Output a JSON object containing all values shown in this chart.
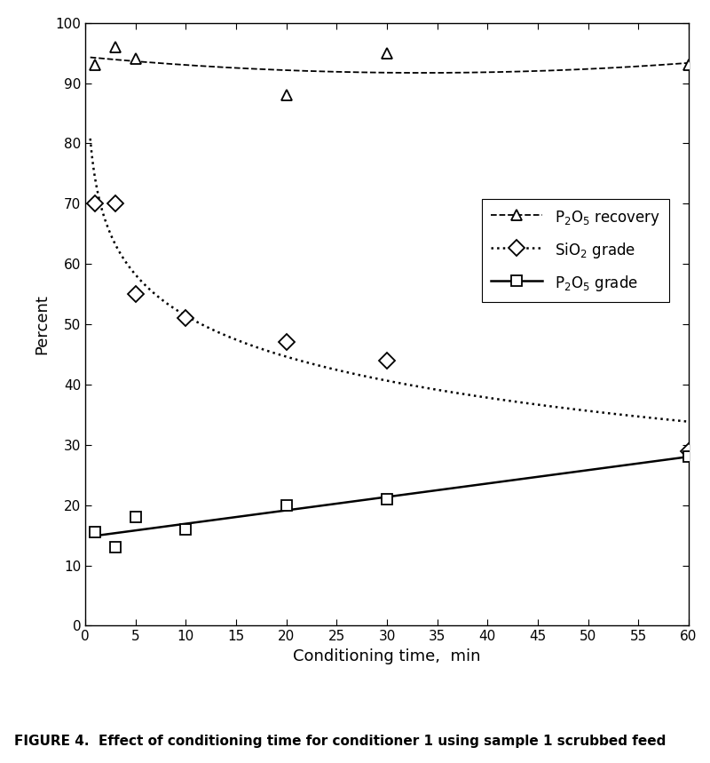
{
  "title": "",
  "xlabel": "Conditioning time,  min",
  "ylabel": "Percent",
  "caption": "FIGURE 4.  Effect of conditioning time for conditioner 1 using sample 1 scrubbed feed",
  "xlim": [
    0,
    60
  ],
  "ylim": [
    0,
    100
  ],
  "xticks": [
    0,
    5,
    10,
    15,
    20,
    25,
    30,
    35,
    40,
    45,
    50,
    55,
    60
  ],
  "yticks": [
    0,
    10,
    20,
    30,
    40,
    50,
    60,
    70,
    80,
    90,
    100
  ],
  "p2o5_recovery_x": [
    1,
    3,
    5,
    20,
    30,
    60
  ],
  "p2o5_recovery_y": [
    93,
    96,
    94,
    88,
    95,
    93
  ],
  "sio2_grade_x": [
    1,
    3,
    5,
    10,
    20,
    30,
    60
  ],
  "sio2_grade_y": [
    70,
    70,
    55,
    51,
    47,
    44,
    29
  ],
  "p2o5_grade_x": [
    1,
    3,
    5,
    10,
    20,
    30,
    60
  ],
  "p2o5_grade_y": [
    15.5,
    13,
    18,
    16,
    20,
    21,
    28
  ],
  "line_color": "#000000",
  "bg_color": "#ffffff"
}
